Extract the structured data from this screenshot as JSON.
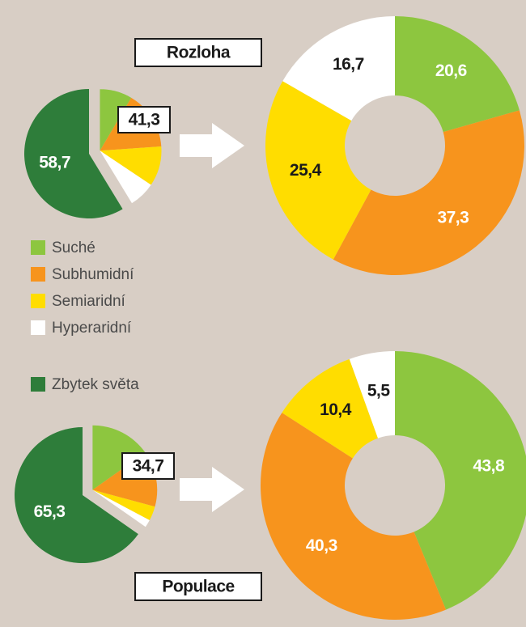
{
  "chart_data": {
    "type": "pie-donut",
    "categories": [
      "Suché",
      "Subhumidní",
      "Semiaridní",
      "Hyperaridní"
    ],
    "colors": [
      "#8dc63f",
      "#f7941d",
      "#ffdd00",
      "#ffffff"
    ],
    "rest_name": "Zbytek světa",
    "rest_color": "#2e7d3a",
    "panels": [
      {
        "title": "Rozloha",
        "rest_value": 58.7,
        "rest_label": "58,7",
        "total_value": 41.3,
        "total_label": "41,3",
        "values": [
          20.6,
          37.3,
          25.4,
          16.7
        ],
        "value_labels": [
          "20,6",
          "37,3",
          "25,4",
          "16,7"
        ]
      },
      {
        "title": "Populace",
        "rest_value": 65.3,
        "rest_label": "65,3",
        "total_value": 34.7,
        "total_label": "34,7",
        "values": [
          43.8,
          40.3,
          10.4,
          5.5
        ],
        "value_labels": [
          "43,8",
          "40,3",
          "10,4",
          "5,5"
        ]
      }
    ]
  }
}
